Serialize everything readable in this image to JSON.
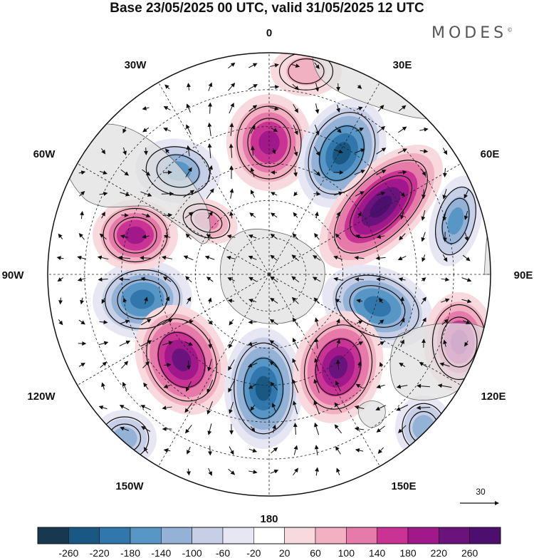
{
  "title": "Base 23/05/2025 00 UTC, valid 31/05/2025 12 UTC",
  "logo": {
    "text": "MODES",
    "mark": "©"
  },
  "longitude_labels": [
    {
      "key": "l0",
      "text": "0"
    },
    {
      "key": "l30e",
      "text": "30E"
    },
    {
      "key": "l60e",
      "text": "60E"
    },
    {
      "key": "l90e",
      "text": "90E"
    },
    {
      "key": "l120e",
      "text": "120E"
    },
    {
      "key": "l150e",
      "text": "150E"
    },
    {
      "key": "l180",
      "text": "180"
    },
    {
      "key": "l150w",
      "text": "150W"
    },
    {
      "key": "l120w",
      "text": "120W"
    },
    {
      "key": "l90w",
      "text": "90W"
    },
    {
      "key": "l60w",
      "text": "60W"
    },
    {
      "key": "l30w",
      "text": "30W"
    }
  ],
  "wind_scale": {
    "label": "30"
  },
  "colorbar": {
    "labels": [
      "-260",
      "-220",
      "-180",
      "-140",
      "-100",
      "-60",
      "-20",
      "20",
      "60",
      "100",
      "140",
      "180",
      "220",
      "260"
    ],
    "colors": [
      "#17384f",
      "#1a5884",
      "#3177ac",
      "#5896c6",
      "#93b2d6",
      "#c6cfe6",
      "#e6e7f3",
      "#ffffff",
      "#f8d9de",
      "#f2b1c3",
      "#e67aa8",
      "#c93494",
      "#a0188a",
      "#6a137d",
      "#4c0f6e"
    ]
  },
  "anomaly_centers": [
    {
      "key": "a0",
      "value": 200
    },
    {
      "key": "a1",
      "value": -220
    },
    {
      "key": "a2",
      "value": 260
    },
    {
      "key": "a3",
      "value": -140
    },
    {
      "key": "a4",
      "value": -200
    },
    {
      "key": "a5",
      "value": 180
    },
    {
      "key": "a6",
      "value": -180
    },
    {
      "key": "a7",
      "value": 220
    },
    {
      "key": "a8",
      "value": -240
    },
    {
      "key": "a9",
      "value": 240
    },
    {
      "key": "a10",
      "value": 200
    },
    {
      "key": "a11",
      "value": -140
    },
    {
      "key": "a12",
      "value": -120
    },
    {
      "key": "a13",
      "value": 120
    },
    {
      "key": "a14",
      "value": -100
    },
    {
      "key": "a15",
      "value": 60
    }
  ]
}
